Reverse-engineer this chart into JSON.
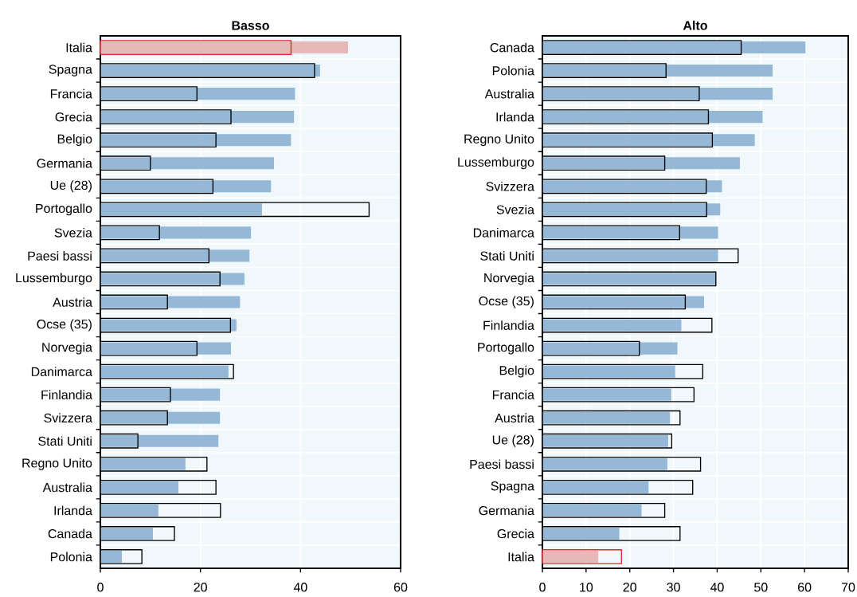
{
  "chart_data": [
    {
      "type": "bar",
      "orientation": "horizontal",
      "title": "Basso",
      "grid": true,
      "xlim": [
        0,
        60
      ],
      "xticks": [
        0,
        20,
        40,
        60
      ],
      "categories": [
        "Italia",
        "Spagna",
        "Francia",
        "Grecia",
        "Belgio",
        "Germania",
        "Ue (28)",
        "Portogallo",
        "Svezia",
        "Paesi bassi",
        "Lussemburgo",
        "Austria",
        "Ocse (35)",
        "Norvegia",
        "Danimarca",
        "Finlandia",
        "Svizzera",
        "Stati Uniti",
        "Regno Unito",
        "Australia",
        "Irlanda",
        "Canada",
        "Polonia"
      ],
      "series": [
        {
          "colors": [
            "#e6b9b8",
            "#95b8d7",
            "#95b8d7",
            "#95b8d7",
            "#95b8d7",
            "#95b8d7",
            "#95b8d7",
            "#95b8d7",
            "#95b8d7",
            "#95b8d7",
            "#95b8d7",
            "#95b8d7",
            "#95b8d7",
            "#95b8d7",
            "#95b8d7",
            "#95b8d7",
            "#95b8d7",
            "#95b8d7",
            "#95b8d7",
            "#95b8d7",
            "#95b8d7",
            "#95b8d7",
            "#95b8d7"
          ],
          "values": [
            49.5,
            43.9,
            38.9,
            38.7,
            38.1,
            34.7,
            34.1,
            32.3,
            30.1,
            29.8,
            28.8,
            27.9,
            27.2,
            26.1,
            25.6,
            23.9,
            23.9,
            23.6,
            17.0,
            15.6,
            11.6,
            10.5,
            4.3
          ]
        },
        {
          "colors": [
            "#e0242d",
            "#000000",
            "#000000",
            "#000000",
            "#000000",
            "#000000",
            "#000000",
            "#000000",
            "#000000",
            "#000000",
            "#000000",
            "#000000",
            "#000000",
            "#000000",
            "#000000",
            "#000000",
            "#000000",
            "#000000",
            "#000000",
            "#000000",
            "#000000",
            "#000000",
            "#000000"
          ],
          "values": [
            38.1,
            42.8,
            19.3,
            26.1,
            23.1,
            10.0,
            22.5,
            53.7,
            11.8,
            21.7,
            23.9,
            13.4,
            26.0,
            19.3,
            26.6,
            14.0,
            13.4,
            7.5,
            21.3,
            23.1,
            24.0,
            14.8,
            8.3
          ]
        }
      ]
    },
    {
      "type": "bar",
      "orientation": "horizontal",
      "title": "Alto",
      "grid": true,
      "xlim": [
        0,
        70
      ],
      "xticks": [
        0,
        10,
        20,
        30,
        40,
        50,
        60,
        70
      ],
      "categories": [
        "Canada",
        "Polonia",
        "Australia",
        "Irlanda",
        "Regno Unito",
        "Lussemburgo",
        "Svizzera",
        "Svezia",
        "Danimarca",
        "Stati Uniti",
        "Norvegia",
        "Ocse (35)",
        "Finlandia",
        "Portogallo",
        "Belgio",
        "Francia",
        "Austria",
        "Ue (28)",
        "Paesi bassi",
        "Spagna",
        "Germania",
        "Grecia",
        "Italia"
      ],
      "series": [
        {
          "colors": [
            "#95b8d7",
            "#95b8d7",
            "#95b8d7",
            "#95b8d7",
            "#95b8d7",
            "#95b8d7",
            "#95b8d7",
            "#95b8d7",
            "#95b8d7",
            "#95b8d7",
            "#95b8d7",
            "#95b8d7",
            "#95b8d7",
            "#95b8d7",
            "#95b8d7",
            "#95b8d7",
            "#95b8d7",
            "#95b8d7",
            "#95b8d7",
            "#95b8d7",
            "#95b8d7",
            "#95b8d7",
            "#e6b9b8"
          ],
          "values": [
            60.2,
            52.7,
            52.7,
            50.4,
            48.6,
            45.2,
            41.1,
            40.7,
            40.2,
            40.2,
            39.7,
            37.0,
            31.8,
            30.9,
            30.4,
            29.5,
            29.2,
            28.8,
            28.6,
            24.3,
            22.7,
            17.6,
            12.8
          ]
        },
        {
          "colors": [
            "#000000",
            "#000000",
            "#000000",
            "#000000",
            "#000000",
            "#000000",
            "#000000",
            "#000000",
            "#000000",
            "#000000",
            "#000000",
            "#000000",
            "#000000",
            "#000000",
            "#000000",
            "#000000",
            "#000000",
            "#000000",
            "#000000",
            "#000000",
            "#000000",
            "#000000",
            "#e0242d"
          ],
          "values": [
            45.5,
            28.3,
            35.9,
            38.0,
            38.9,
            28.0,
            37.5,
            37.6,
            31.4,
            44.8,
            39.7,
            32.7,
            38.8,
            22.2,
            36.7,
            34.7,
            31.5,
            29.6,
            36.2,
            34.4,
            28.0,
            31.5,
            18.1
          ]
        }
      ]
    }
  ]
}
